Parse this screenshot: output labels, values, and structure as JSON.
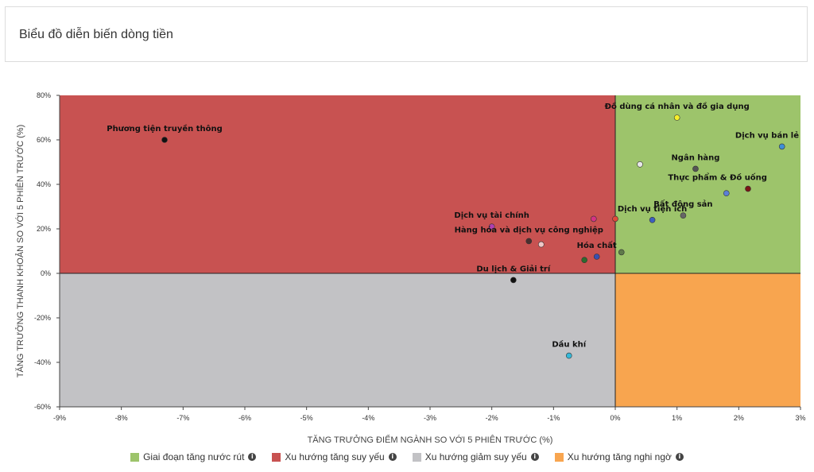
{
  "header": {
    "title": "Biểu đồ diễn biến dòng tiền"
  },
  "chart_data": {
    "type": "scatter",
    "xlabel": "TĂNG TRƯỞNG ĐIỂM NGÀNH SO VỚI 5 PHIÊN TRƯỚC (%)",
    "ylabel": "TĂNG TRƯỞNG THANH KHOẢN SO VỚI 5 PHIÊN TRƯỚC (%)",
    "xlim": [
      -9,
      3
    ],
    "ylim": [
      -60,
      80
    ],
    "xticks": [
      -9,
      -8,
      -7,
      -6,
      -5,
      -4,
      -3,
      -2,
      -1,
      0,
      1,
      2,
      3
    ],
    "yticks": [
      -60,
      -40,
      -20,
      0,
      20,
      40,
      60,
      80
    ],
    "xtick_labels": [
      "-9%",
      "-8%",
      "-7%",
      "-6%",
      "-5%",
      "-4%",
      "-3%",
      "-2%",
      "-1%",
      "0%",
      "1%",
      "2%",
      "3%"
    ],
    "ytick_labels": [
      "-60%",
      "-40%",
      "-20%",
      "0%",
      "20%",
      "40%",
      "60%",
      "80%"
    ],
    "quadrants": [
      {
        "name": "Giai đoạn tăng nước rút",
        "color": "#9dc46b",
        "region": "top-right"
      },
      {
        "name": "Xu hướng tăng suy yếu",
        "color": "#c85251",
        "region": "top-left"
      },
      {
        "name": "Xu hướng giảm suy yếu",
        "color": "#c2c2c5",
        "region": "bottom-left"
      },
      {
        "name": "Xu hướng tăng nghi ngờ",
        "color": "#f8a54f",
        "region": "bottom-right"
      }
    ],
    "points": [
      {
        "label": "Phương tiện truyền thông",
        "x": -7.3,
        "y": 60,
        "color": "#111111"
      },
      {
        "label": "Đồ dùng cá nhân và đồ gia dụng",
        "x": 1.0,
        "y": 70,
        "color": "#f5ef2a"
      },
      {
        "label": "Dịch vụ bán lẻ",
        "x": 2.7,
        "y": 57,
        "color": "#3e8ed8"
      },
      {
        "label": "Ngân hàng",
        "x": 1.3,
        "y": 47,
        "color": "#555555"
      },
      {
        "label": "",
        "x": 0.4,
        "y": 49,
        "color": "#e8e8e8"
      },
      {
        "label": "Thực phẩm & Đồ uống",
        "x": 2.15,
        "y": 38,
        "color": "#7a1515"
      },
      {
        "label": "",
        "x": 1.8,
        "y": 36,
        "color": "#5b7fd6"
      },
      {
        "label": "Bất động sản",
        "x": 1.1,
        "y": 26,
        "color": "#666666"
      },
      {
        "label": "Dịch vụ tiện ích",
        "x": 0.6,
        "y": 24,
        "color": "#3b5fc0"
      },
      {
        "label": "",
        "x": 0.0,
        "y": 24.5,
        "color": "#e04a3a"
      },
      {
        "label": "",
        "x": -0.35,
        "y": 24.5,
        "color": "#d63384"
      },
      {
        "label": "Dịch vụ tài chính",
        "x": -2.0,
        "y": 21,
        "color": "#b03fb0"
      },
      {
        "label": "Hàng hóa và dịch vụ công nghiệp",
        "x": -1.4,
        "y": 14.5,
        "color": "#4a2f2f"
      },
      {
        "label": "",
        "x": -1.2,
        "y": 13,
        "color": "#f0c8c8"
      },
      {
        "label": "Hóa chất",
        "x": -0.3,
        "y": 7.5,
        "color": "#3b4fb0"
      },
      {
        "label": "",
        "x": 0.1,
        "y": 9.5,
        "color": "#5f7a4a"
      },
      {
        "label": "",
        "x": -0.5,
        "y": 6,
        "color": "#2e6a2e"
      },
      {
        "label": "Du lịch & Giải trí",
        "x": -1.65,
        "y": -3,
        "color": "#111111"
      },
      {
        "label": "Dầu khí",
        "x": -0.75,
        "y": -37,
        "color": "#35b8d8"
      }
    ],
    "legend": [
      {
        "name": "Giai đoạn tăng nước rút",
        "color": "#9dc46b"
      },
      {
        "name": "Xu hướng tăng suy yếu",
        "color": "#c85251"
      },
      {
        "name": "Xu hướng giảm suy yếu",
        "color": "#c2c2c5"
      },
      {
        "name": "Xu hướng tăng nghi ngờ",
        "color": "#f8a54f"
      }
    ],
    "legend_position": "bottom"
  }
}
